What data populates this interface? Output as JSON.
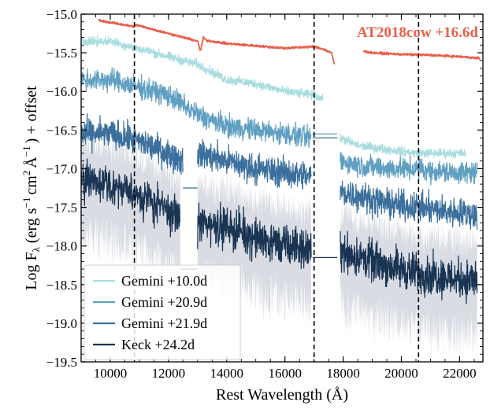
{
  "chart_data": {
    "type": "line",
    "title": "",
    "xlabel": "Rest Wavelength (Å)",
    "ylabel": "Log F_λ (erg s^-1 cm^2 Å^-1) + offset",
    "ylabel_parts": {
      "prefix": "Log F",
      "lambda": "λ",
      "units_open": "(erg s",
      "exp_minus1_a": "−1",
      "cm": "cm",
      "exp_2": "2",
      "ang": "Å",
      "exp_minus1_b": "−1",
      "suffix": ") + offset"
    },
    "xlim": [
      9000,
      22800
    ],
    "ylim": [
      -19.5,
      -15.0
    ],
    "xticks": [
      10000,
      12000,
      14000,
      16000,
      18000,
      20000,
      22000
    ],
    "xtick_labels": [
      "10000",
      "12000",
      "14000",
      "16000",
      "18000",
      "20000",
      "22000"
    ],
    "yticks": [
      -15.0,
      -15.5,
      -16.0,
      -16.5,
      -17.0,
      -17.5,
      -18.0,
      -18.5,
      -19.0,
      -19.5
    ],
    "ytick_labels": [
      "−15.0",
      "−15.5",
      "−16.0",
      "−16.5",
      "−17.0",
      "−17.5",
      "−18.0",
      "−18.5",
      "−19.0",
      "−19.5"
    ],
    "vlines": [
      10830,
      17000,
      20590
    ],
    "vline_style": "dashed",
    "annotation": {
      "text": "AT2018cow +16.6d",
      "color": "#e8604c",
      "anchor_x": 22600,
      "anchor_y": -15.2
    },
    "error_band_color": "#cfd3dc",
    "series": [
      {
        "name": "AT2018cow +16.6d",
        "color": "#e8604c",
        "in_legend": false,
        "noise": 0.012,
        "segments": [
          {
            "x": [
              9600,
              10800,
              10900,
              13000,
              13100,
              13200,
              13300,
              14000,
              16000,
              17000,
              17300,
              17600,
              17700
            ],
            "y": [
              -15.08,
              -15.16,
              -15.14,
              -15.35,
              -15.48,
              -15.3,
              -15.34,
              -15.38,
              -15.44,
              -15.42,
              -15.45,
              -15.5,
              -15.65
            ]
          },
          {
            "x": [
              18700,
              19000,
              20000,
              21000,
              22000,
              22700
            ],
            "y": [
              -15.48,
              -15.5,
              -15.52,
              -15.53,
              -15.55,
              -15.57
            ]
          }
        ]
      },
      {
        "name": "Gemini +10.0d",
        "color": "#a9dde0",
        "in_legend": true,
        "noise": 0.05,
        "segments": [
          {
            "x": [
              9000,
              10000,
              11000,
              12000,
              13000,
              13500,
              14000,
              15000,
              16000,
              17000,
              17300
            ],
            "y": [
              -15.35,
              -15.35,
              -15.45,
              -15.55,
              -15.65,
              -15.75,
              -15.85,
              -15.9,
              -16.0,
              -16.05,
              -16.1
            ]
          },
          {
            "x": [
              17900,
              18500,
              19500,
              20500,
              21500,
              22200
            ],
            "y": [
              -16.6,
              -16.7,
              -16.75,
              -16.8,
              -16.8,
              -16.8
            ]
          }
        ]
      },
      {
        "name": "Gemini +20.9d",
        "color": "#5f9fc2",
        "in_legend": true,
        "noise": 0.12,
        "segments": [
          {
            "x": [
              9000,
              10000,
              11000,
              12000,
              13000,
              14000,
              15000,
              16000,
              16900
            ],
            "y": [
              -15.85,
              -15.85,
              -15.95,
              -16.05,
              -16.3,
              -16.45,
              -16.5,
              -16.55,
              -16.6
            ]
          },
          {
            "x": [
              16950,
              17800
            ],
            "y": [
              -16.55,
              -16.55
            ]
          },
          {
            "x": [
              17900,
              18500,
              19500,
              20500,
              21500,
              22600
            ],
            "y": [
              -16.9,
              -16.95,
              -17.0,
              -17.0,
              -17.05,
              -17.05
            ]
          }
        ]
      },
      {
        "name": "Gemini +21.9d",
        "color": "#3b6f9d",
        "in_legend": true,
        "noise": 0.16,
        "segments": [
          {
            "x": [
              9000,
              10000,
              11000,
              12000,
              12500
            ],
            "y": [
              -16.55,
              -16.55,
              -16.65,
              -16.8,
              -16.9
            ]
          },
          {
            "x": [
              12500,
              13000
            ],
            "y": [
              -17.25,
              -17.25
            ]
          },
          {
            "x": [
              13000,
              14000,
              15000,
              16000,
              16900
            ],
            "y": [
              -16.8,
              -16.9,
              -17.0,
              -17.05,
              -17.1
            ]
          },
          {
            "x": [
              16950,
              17800
            ],
            "y": [
              -16.6,
              -16.6
            ]
          },
          {
            "x": [
              17900,
              18500,
              19500,
              20500,
              21500,
              22600
            ],
            "y": [
              -17.3,
              -17.35,
              -17.45,
              -17.5,
              -17.55,
              -17.6
            ]
          }
        ]
      },
      {
        "name": "Keck +24.2d",
        "color": "#1a3553",
        "in_legend": true,
        "noise": 0.22,
        "band": 0.55,
        "segments": [
          {
            "x": [
              9000,
              10000,
              11000,
              12000,
              12400
            ],
            "y": [
              -17.15,
              -17.2,
              -17.35,
              -17.55,
              -17.65
            ]
          },
          {
            "x": [
              12400,
              13000
            ],
            "y": [
              -18.3,
              -18.3
            ]
          },
          {
            "x": [
              13000,
              14000,
              15000,
              16000,
              16900
            ],
            "y": [
              -17.7,
              -17.75,
              -17.9,
              -18.0,
              -18.05
            ]
          },
          {
            "x": [
              16950,
              17800
            ],
            "y": [
              -18.15,
              -18.15
            ]
          },
          {
            "x": [
              17900,
              18500,
              19500,
              20500,
              21500,
              22600
            ],
            "y": [
              -18.05,
              -18.15,
              -18.25,
              -18.35,
              -18.4,
              -18.45
            ]
          }
        ]
      }
    ],
    "legend": {
      "placement": "lower-left",
      "entries": [
        "Gemini +10.0d",
        "Gemini +20.9d",
        "Gemini +21.9d",
        "Keck +24.2d"
      ]
    }
  }
}
